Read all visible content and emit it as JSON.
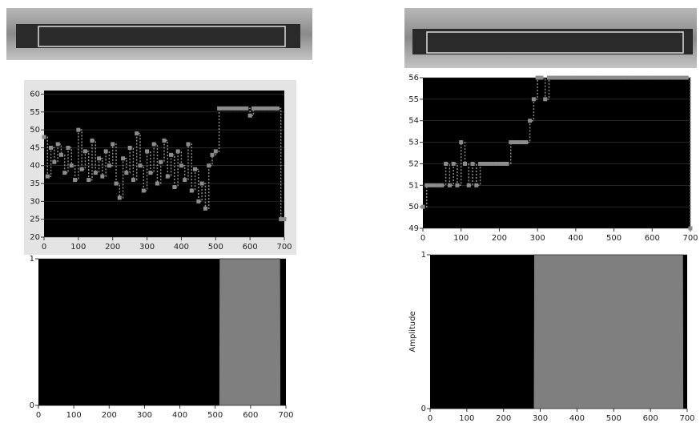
{
  "chart_data": [
    {
      "type": "line",
      "color": "#8c8c8c",
      "x": [
        0,
        10,
        20,
        30,
        40,
        50,
        60,
        70,
        80,
        90,
        100,
        110,
        120,
        130,
        140,
        150,
        160,
        170,
        180,
        190,
        200,
        210,
        220,
        230,
        240,
        250,
        260,
        270,
        280,
        290,
        300,
        310,
        320,
        330,
        340,
        350,
        360,
        370,
        380,
        390,
        400,
        410,
        420,
        430,
        440,
        450,
        460,
        470,
        480,
        490,
        500,
        510,
        520,
        530,
        540,
        550,
        560,
        570,
        580,
        590,
        600,
        610,
        620,
        630,
        640,
        650,
        660,
        670,
        680,
        690,
        700
      ],
      "values": [
        48,
        37,
        45,
        41,
        46,
        43,
        38,
        45,
        40,
        36,
        50,
        39,
        44,
        36,
        47,
        38,
        42,
        37,
        44,
        40,
        46,
        35,
        31,
        42,
        38,
        45,
        36,
        49,
        40,
        33,
        44,
        38,
        46,
        35,
        41,
        47,
        37,
        43,
        34,
        44,
        40,
        36,
        46,
        33,
        39,
        30,
        35,
        28,
        40,
        43,
        44,
        56,
        56,
        56,
        56,
        56,
        56,
        56,
        56,
        56,
        54,
        56,
        56,
        56,
        56,
        56,
        56,
        56,
        56,
        25,
        25
      ],
      "xlim": [
        0,
        700
      ],
      "ylim": [
        20,
        61
      ],
      "xticks": [
        0,
        100,
        200,
        300,
        400,
        500,
        600,
        700
      ],
      "yticks": [
        20,
        25,
        30,
        35,
        40,
        45,
        50,
        55,
        60
      ]
    },
    {
      "type": "area",
      "color": "#7f7f7f",
      "x": [
        0,
        511,
        512,
        684,
        685,
        700
      ],
      "values": [
        0,
        0,
        1,
        1,
        0,
        0
      ],
      "xlim": [
        0,
        700
      ],
      "ylim": [
        0,
        1
      ],
      "xticks": [
        0,
        100,
        200,
        300,
        400,
        500,
        600,
        700
      ],
      "yticks": [
        0,
        1
      ]
    },
    {
      "type": "line",
      "color": "#8c8c8c",
      "x": [
        0,
        10,
        20,
        30,
        40,
        50,
        60,
        70,
        80,
        90,
        100,
        110,
        120,
        130,
        140,
        150,
        160,
        170,
        180,
        190,
        200,
        210,
        220,
        230,
        240,
        250,
        260,
        270,
        280,
        290,
        300,
        310,
        320,
        330,
        340,
        350,
        360,
        370,
        380,
        390,
        400,
        410,
        420,
        430,
        440,
        450,
        460,
        470,
        480,
        490,
        500,
        510,
        520,
        530,
        540,
        550,
        560,
        570,
        580,
        590,
        600,
        610,
        620,
        630,
        640,
        650,
        660,
        670,
        680,
        690,
        700
      ],
      "values": [
        50,
        51,
        51,
        51,
        51,
        51,
        52,
        51,
        52,
        51,
        53,
        52,
        51,
        52,
        51,
        52,
        52,
        52,
        52,
        52,
        52,
        52,
        52,
        53,
        53,
        53,
        53,
        53,
        54,
        55,
        56,
        56,
        55,
        56,
        56,
        56,
        56,
        56,
        56,
        56,
        56,
        56,
        56,
        56,
        56,
        56,
        56,
        56,
        56,
        56,
        56,
        56,
        56,
        56,
        56,
        56,
        56,
        56,
        56,
        56,
        56,
        56,
        56,
        56,
        56,
        56,
        56,
        56,
        56,
        56,
        49
      ],
      "xlim": [
        0,
        700
      ],
      "ylim": [
        49,
        56
      ],
      "xticks": [
        0,
        100,
        200,
        300,
        400,
        500,
        600,
        700
      ],
      "yticks": [
        49,
        50,
        51,
        52,
        53,
        54,
        55,
        56
      ]
    },
    {
      "type": "area",
      "color": "#7f7f7f",
      "ylabel": "Amplitude",
      "x": [
        0,
        282,
        283,
        689,
        690,
        700
      ],
      "values": [
        0,
        0,
        1,
        1,
        0,
        0
      ],
      "xlim": [
        0,
        700
      ],
      "ylim": [
        0,
        1
      ],
      "xticks": [
        0,
        100,
        200,
        300,
        400,
        500,
        600,
        700
      ],
      "yticks": [
        0,
        1
      ]
    }
  ]
}
